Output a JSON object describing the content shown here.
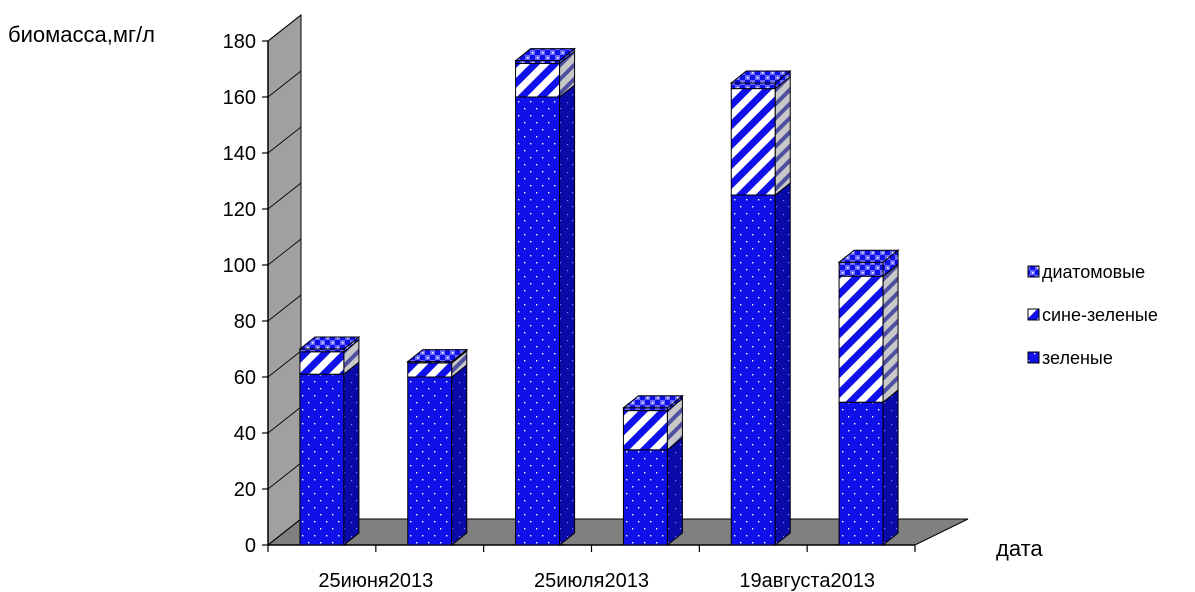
{
  "chart_data": {
    "type": "bar",
    "stacked": true,
    "three_d": true,
    "ylabel": "биомасса,мг/л",
    "xlabel": "дата",
    "ylim": [
      0,
      180
    ],
    "yticks": [
      0,
      20,
      40,
      60,
      80,
      100,
      120,
      140,
      160,
      180
    ],
    "x_tick_labels": [
      "25июня2013",
      "25июля2013",
      "19августа2013"
    ],
    "categories": [
      "1",
      "2",
      "3",
      "4",
      "5",
      "6"
    ],
    "series": [
      {
        "name": "зеленые",
        "values": [
          61,
          60,
          160,
          34,
          125,
          51
        ],
        "color": "#1010e8",
        "pattern": "dots"
      },
      {
        "name": "сине-зеленые",
        "values": [
          8,
          5,
          12,
          14,
          38,
          45
        ],
        "color": "#1010e8",
        "pattern": "diagonal-stripes"
      },
      {
        "name": "диатомовые",
        "values": [
          1,
          0.5,
          1,
          1,
          2,
          5
        ],
        "color": "#1010e8",
        "pattern": "checker"
      }
    ],
    "legend": {
      "position": "right",
      "order": [
        "диатомовые",
        "сине-зеленые",
        "зеленые"
      ]
    },
    "grid": false,
    "wall_color": "#a0a0a0",
    "floor_color": "#808080"
  }
}
